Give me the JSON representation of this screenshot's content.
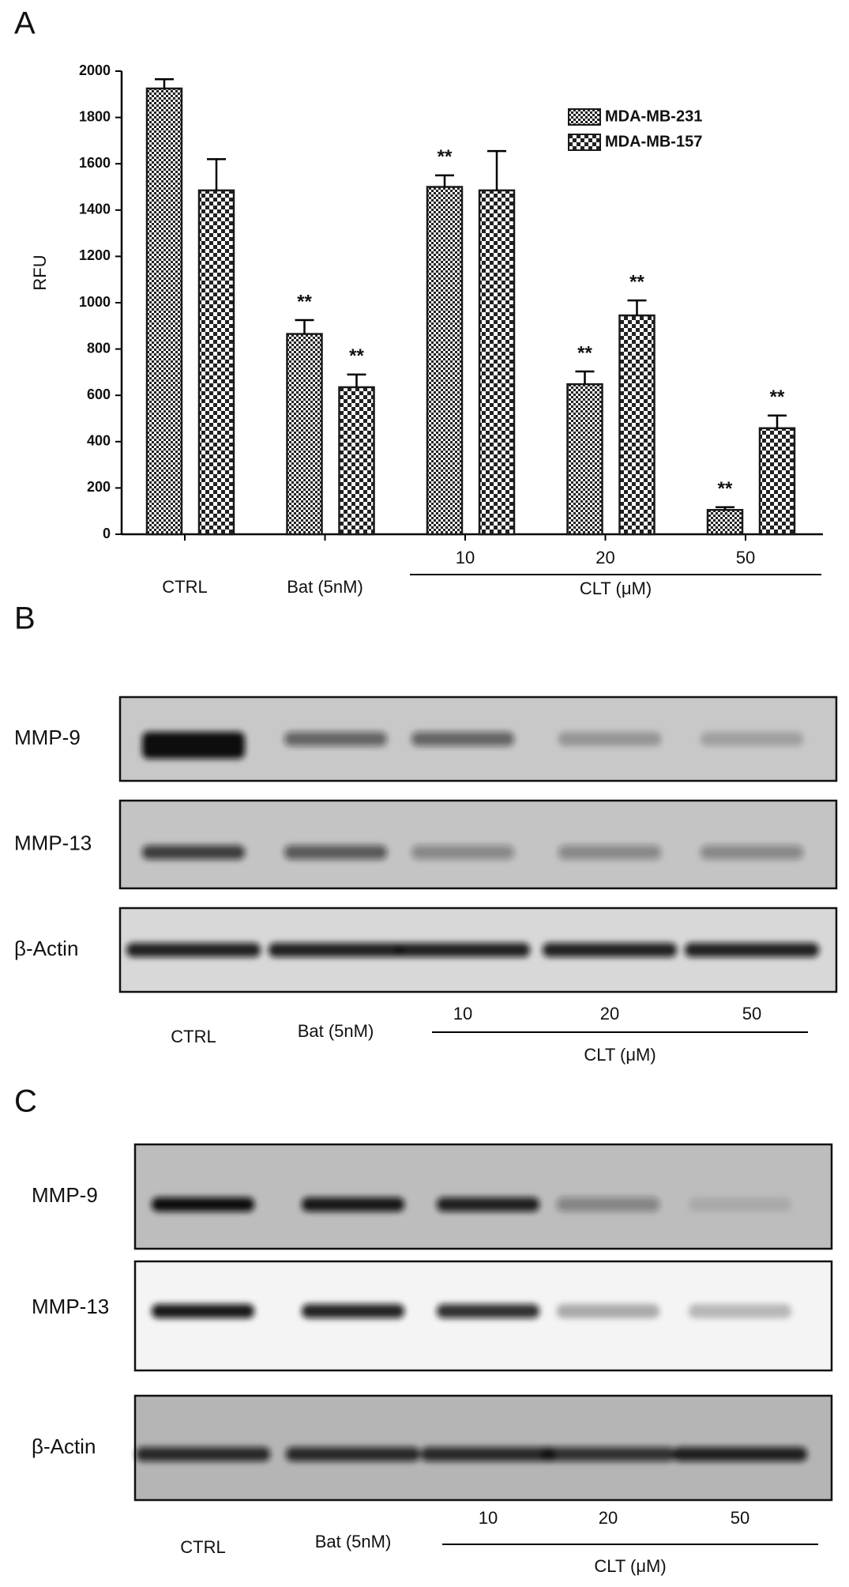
{
  "chart_data": {
    "type": "bar",
    "panel_label": "A",
    "ylabel": "RFU",
    "categories": [
      "CTRL",
      "Bat (5nM)",
      "10",
      "20",
      "50"
    ],
    "x_group_label": "CLT (μM)",
    "series": [
      {
        "name": "MDA-MB-231",
        "color": "#1a1a1a",
        "values": [
          1925,
          865,
          1500,
          648,
          105
        ],
        "errors": [
          40,
          60,
          50,
          55,
          12
        ],
        "annotations": [
          null,
          "**",
          "**",
          "**",
          "**"
        ]
      },
      {
        "name": "MDA-MB-157",
        "color": "#1a1a1a",
        "values": [
          1485,
          635,
          1485,
          945,
          458
        ],
        "errors": [
          135,
          55,
          170,
          65,
          55
        ],
        "annotations": [
          null,
          "**",
          null,
          "**",
          "**"
        ]
      }
    ],
    "ylim": [
      0,
      2000
    ],
    "yticks": [
      0,
      200,
      400,
      600,
      800,
      1000,
      1200,
      1400,
      1600,
      1800,
      2000
    ],
    "legend": "top-right"
  },
  "blots": [
    {
      "label": "B",
      "rows": [
        "MMP-9",
        "MMP-13",
        "β-Actin"
      ],
      "lanes": [
        "CTRL",
        "Bat (5nM)",
        "10",
        "20",
        "50"
      ],
      "lane_group": "CLT (μM)"
    },
    {
      "label": "C",
      "rows": [
        "MMP-9",
        "MMP-13",
        "β-Actin"
      ],
      "lanes": [
        "CTRL",
        "Bat (5nM)",
        "10",
        "20",
        "50"
      ],
      "lane_group": "CLT (μM)"
    }
  ]
}
